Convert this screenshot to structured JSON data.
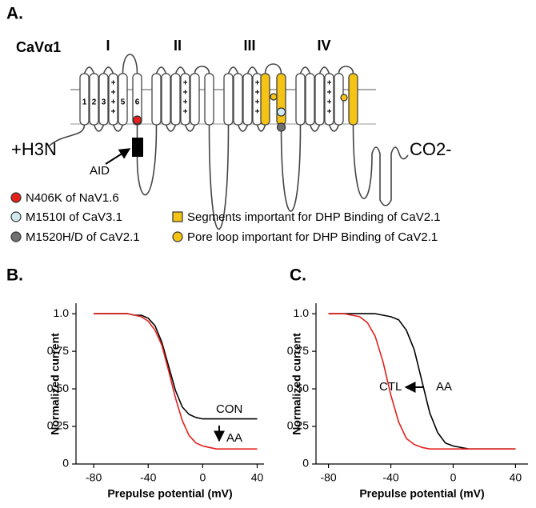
{
  "diagram": {
    "panel_label": "A.",
    "protein": "CaVα1",
    "domains": [
      "I",
      "II",
      "III",
      "IV"
    ],
    "segment_labels": [
      "1",
      "2",
      "3",
      "5",
      "6"
    ],
    "charge": "+",
    "n_terminus": "+H3N",
    "c_terminus": "CO2-",
    "aid": "AID",
    "legend": [
      {
        "label": "N406K of NaV1.6",
        "color": "#e3201c",
        "shape": "circle"
      },
      {
        "label": "M1510I of CaV3.1",
        "color": "#cdeaf0",
        "shape": "circle"
      },
      {
        "label": "M1520H/D of CaV2.1",
        "color": "#707070",
        "shape": "circle"
      },
      {
        "label": "Segments important for DHP Binding of CaV2.1",
        "color": "#f5c314",
        "shape": "square"
      },
      {
        "label": "Pore loop important for DHP Binding of CaV2.1",
        "color": "#f5c314",
        "shape": "circle"
      }
    ]
  },
  "chart_data": [
    {
      "type": "line",
      "panel_label": "B.",
      "x_label": "Prepulse potential (mV)",
      "y_label": "Normalized current",
      "x": [
        -80,
        -70,
        -60,
        -55,
        -50,
        -45,
        -40,
        -35,
        -30,
        -25,
        -20,
        -15,
        -10,
        -5,
        0,
        10,
        20,
        30,
        40
      ],
      "series": [
        {
          "name": "CON",
          "color": "#000000",
          "values": [
            1,
            1,
            1,
            1,
            0.99,
            0.99,
            0.97,
            0.92,
            0.81,
            0.65,
            0.49,
            0.38,
            0.33,
            0.31,
            0.3,
            0.3,
            0.3,
            0.3,
            0.3
          ]
        },
        {
          "name": "AA",
          "color": "#e3201c",
          "values": [
            1,
            1,
            1,
            1,
            0.99,
            0.98,
            0.95,
            0.89,
            0.79,
            0.62,
            0.44,
            0.29,
            0.19,
            0.14,
            0.12,
            0.1,
            0.1,
            0.1,
            0.1
          ]
        }
      ],
      "xlim": [
        -93,
        45
      ],
      "xticks": [
        -80,
        -40,
        0,
        40
      ],
      "ylim": [
        0,
        1.07
      ],
      "yticks": [
        0,
        0.25,
        {
          "value": 0.5,
          "label": "0.50"
        },
        0.75,
        {
          "value": 1,
          "label": "1.0"
        }
      ]
    },
    {
      "type": "line",
      "panel_label": "C.",
      "x_label": "Prepulse potential (mV)",
      "y_label": "Normalized current",
      "x": [
        -80,
        -70,
        -60,
        -55,
        -50,
        -45,
        -40,
        -35,
        -30,
        -25,
        -20,
        -15,
        -10,
        -5,
        0,
        10,
        20,
        30,
        40
      ],
      "series": [
        {
          "name": "CTL",
          "color": "#000000",
          "values": [
            1,
            1,
            1,
            1,
            1,
            0.99,
            0.98,
            0.96,
            0.89,
            0.76,
            0.55,
            0.34,
            0.21,
            0.14,
            0.12,
            0.1,
            0.1,
            0.1,
            0.1
          ]
        },
        {
          "name": "AA",
          "color": "#e3201c",
          "values": [
            1,
            1,
            0.98,
            0.94,
            0.85,
            0.68,
            0.46,
            0.28,
            0.17,
            0.13,
            0.11,
            0.1,
            0.1,
            0.1,
            0.1,
            0.1,
            0.1,
            0.1,
            0.1
          ]
        }
      ],
      "xlim": [
        -88,
        48
      ],
      "xticks": [
        -80,
        -40,
        0,
        40
      ],
      "ylim": [
        0,
        1.07
      ],
      "yticks": [
        0,
        0.25,
        {
          "value": 0.5,
          "label": "0.50"
        },
        0.75,
        {
          "value": 1,
          "label": "1.0"
        }
      ]
    }
  ]
}
